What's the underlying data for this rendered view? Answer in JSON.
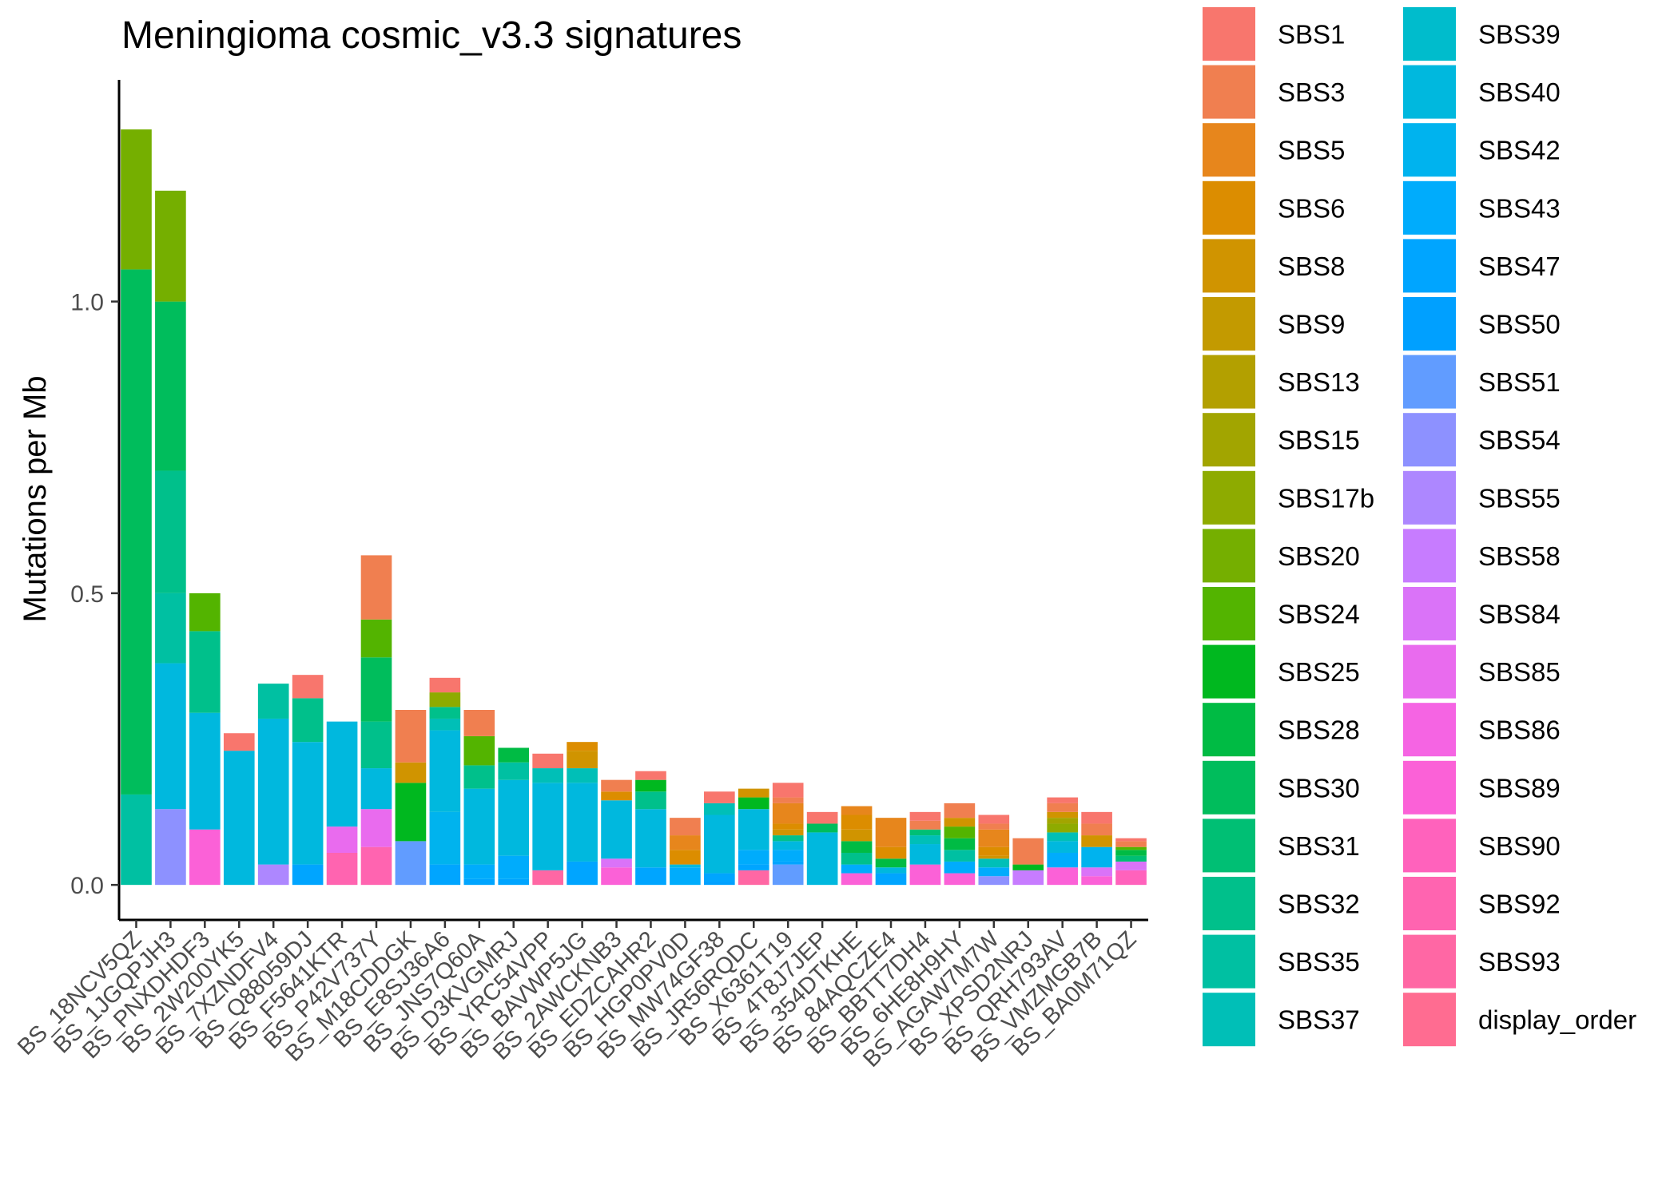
{
  "chart_data": {
    "type": "bar",
    "stacked": true,
    "title": "Meningioma cosmic_v3.3 signatures",
    "xlabel": "",
    "ylabel": "Mutations per Mb",
    "ylim": [
      -0.06,
      1.38
    ],
    "yticks": [
      0.0,
      0.5,
      1.0
    ],
    "ytick_labels": [
      "0.0",
      "0.5",
      "1.0"
    ],
    "grid": false,
    "legend_position": "right",
    "categories": [
      "BS_18NCV5QZ",
      "BS_1JGQPJH3",
      "BS_PNXDHDF3",
      "BS_2W200YK5",
      "BS_7XZNDFV4",
      "BS_Q88059DJ",
      "BS_F5641KTR",
      "BS_P42V737Y",
      "BS_M18CDDGK",
      "BS_E8SJ36A6",
      "BS_JNS7Q60A",
      "BS_D3KVGMRJ",
      "BS_YRC54VPP",
      "BS_BAVWP5JG",
      "BS_2AWCKNB3",
      "BS_EDZCAHR2",
      "BS_HGP0PV0D",
      "BS_MW74GF38",
      "BS_JR56RQDC",
      "BS_X6361T19",
      "BS_4T8J7JEP",
      "BS_354DTKHE",
      "BS_84AQCZE4",
      "BS_BBTT7DH4",
      "BS_6HE8H9HY",
      "BS_AGAW7M7W",
      "BS_XPSD2NRJ",
      "BS_QRH793AV",
      "BS_VMZMGB7B",
      "BS_BA0M71QZ"
    ],
    "series": [
      {
        "name": "SBS1",
        "color": "#F8766D",
        "values": [
          0,
          0,
          0,
          0.03,
          0,
          0.04,
          0,
          0,
          0,
          0.025,
          0,
          0,
          0.025,
          0,
          0,
          0.015,
          0,
          0.02,
          0,
          0.025,
          0.02,
          0,
          0,
          0.015,
          0,
          0.015,
          0,
          0.01,
          0.02,
          0.005
        ]
      },
      {
        "name": "SBS3",
        "color": "#F07F50",
        "values": [
          0,
          0,
          0,
          0,
          0,
          0,
          0,
          0.11,
          0.09,
          0,
          0.045,
          0,
          0,
          0,
          0.02,
          0,
          0.03,
          0,
          0,
          0.01,
          0,
          0,
          0,
          0.015,
          0.025,
          0.01,
          0.045,
          0.015,
          0.02,
          0.01
        ]
      },
      {
        "name": "SBS5",
        "color": "#E7861C",
        "values": [
          0,
          0,
          0,
          0,
          0,
          0,
          0,
          0,
          0,
          0,
          0,
          0,
          0,
          0,
          0,
          0,
          0.025,
          0,
          0,
          0.035,
          0,
          0.015,
          0.05,
          0,
          0,
          0.03,
          0,
          0,
          0,
          0
        ]
      },
      {
        "name": "SBS6",
        "color": "#DC8D00",
        "values": [
          0,
          0,
          0,
          0,
          0,
          0,
          0,
          0,
          0,
          0,
          0,
          0,
          0,
          0.015,
          0.015,
          0,
          0.025,
          0,
          0,
          0.01,
          0,
          0.025,
          0.02,
          0,
          0,
          0.015,
          0,
          0,
          0,
          0
        ]
      },
      {
        "name": "SBS8",
        "color": "#D09400",
        "values": [
          0,
          0,
          0,
          0,
          0,
          0,
          0,
          0,
          0.035,
          0,
          0,
          0,
          0,
          0.03,
          0,
          0,
          0,
          0,
          0.015,
          0.01,
          0,
          0.02,
          0,
          0,
          0.015,
          0.005,
          0,
          0.01,
          0.02,
          0
        ]
      },
      {
        "name": "SBS9",
        "color": "#C39A00",
        "values": [
          0,
          0,
          0,
          0,
          0,
          0,
          0,
          0,
          0,
          0,
          0,
          0,
          0,
          0,
          0,
          0,
          0,
          0,
          0,
          0,
          0,
          0,
          0,
          0,
          0,
          0,
          0,
          0,
          0,
          0
        ]
      },
      {
        "name": "SBS13",
        "color": "#B3A000",
        "values": [
          0,
          0,
          0,
          0,
          0,
          0,
          0,
          0,
          0,
          0,
          0,
          0,
          0,
          0,
          0,
          0,
          0,
          0,
          0,
          0,
          0,
          0,
          0,
          0,
          0,
          0,
          0,
          0,
          0,
          0
        ]
      },
      {
        "name": "SBS15",
        "color": "#A2A500",
        "values": [
          0,
          0,
          0,
          0,
          0,
          0,
          0,
          0,
          0,
          0,
          0,
          0,
          0,
          0,
          0,
          0,
          0,
          0,
          0,
          0,
          0,
          0,
          0,
          0,
          0,
          0,
          0,
          0.01,
          0,
          0
        ]
      },
      {
        "name": "SBS17b",
        "color": "#8EAB00",
        "values": [
          0,
          0,
          0,
          0,
          0,
          0,
          0,
          0,
          0,
          0.025,
          0,
          0,
          0,
          0,
          0,
          0,
          0,
          0,
          0,
          0,
          0,
          0,
          0,
          0,
          0,
          0,
          0,
          0.015,
          0,
          0
        ]
      },
      {
        "name": "SBS20",
        "color": "#75AF00",
        "values": [
          0.24,
          0.19,
          0,
          0,
          0,
          0,
          0,
          0,
          0,
          0,
          0,
          0,
          0,
          0,
          0,
          0,
          0,
          0,
          0,
          0,
          0,
          0,
          0,
          0,
          0,
          0,
          0,
          0,
          0,
          0
        ]
      },
      {
        "name": "SBS24",
        "color": "#53B400",
        "values": [
          0,
          0,
          0.065,
          0,
          0,
          0,
          0,
          0.065,
          0,
          0,
          0.05,
          0,
          0,
          0,
          0,
          0,
          0,
          0,
          0,
          0,
          0,
          0,
          0,
          0,
          0.02,
          0,
          0,
          0,
          0,
          0.005
        ]
      },
      {
        "name": "SBS25",
        "color": "#00B81F",
        "values": [
          0,
          0,
          0,
          0,
          0,
          0,
          0,
          0,
          0.1,
          0,
          0,
          0,
          0,
          0,
          0,
          0.02,
          0,
          0,
          0.02,
          0,
          0,
          0,
          0,
          0,
          0,
          0,
          0.01,
          0,
          0,
          0
        ]
      },
      {
        "name": "SBS28",
        "color": "#00BB44",
        "values": [
          0,
          0,
          0,
          0,
          0,
          0,
          0,
          0,
          0,
          0,
          0,
          0.025,
          0,
          0,
          0,
          0,
          0,
          0,
          0,
          0,
          0,
          0.02,
          0.015,
          0,
          0.02,
          0,
          0,
          0,
          0,
          0.01
        ]
      },
      {
        "name": "SBS30",
        "color": "#00BD5C",
        "values": [
          0.9,
          0.29,
          0,
          0,
          0,
          0,
          0,
          0.11,
          0,
          0,
          0,
          0,
          0,
          0,
          0,
          0,
          0,
          0,
          0,
          0,
          0.015,
          0,
          0,
          0,
          0,
          0,
          0,
          0,
          0,
          0
        ]
      },
      {
        "name": "SBS31",
        "color": "#00BF74",
        "values": [
          0,
          0,
          0,
          0,
          0,
          0,
          0,
          0,
          0,
          0,
          0,
          0,
          0,
          0,
          0,
          0,
          0,
          0,
          0,
          0,
          0,
          0,
          0,
          0.01,
          0,
          0,
          0,
          0,
          0,
          0.01
        ]
      },
      {
        "name": "SBS32",
        "color": "#00C08B",
        "values": [
          0,
          0.21,
          0.14,
          0,
          0,
          0.075,
          0,
          0.08,
          0,
          0.02,
          0.04,
          0,
          0,
          0,
          0,
          0.03,
          0,
          0,
          0,
          0.01,
          0,
          0.02,
          0,
          0,
          0,
          0,
          0,
          0,
          0,
          0
        ]
      },
      {
        "name": "SBS35",
        "color": "#00C0A2",
        "values": [
          0.155,
          0.12,
          0,
          0,
          0.06,
          0,
          0,
          0,
          0,
          0,
          0,
          0.03,
          0,
          0,
          0,
          0,
          0,
          0,
          0,
          0,
          0,
          0,
          0,
          0,
          0.02,
          0,
          0,
          0,
          0,
          0
        ]
      },
      {
        "name": "SBS37",
        "color": "#00BFB7",
        "values": [
          0,
          0,
          0,
          0,
          0,
          0,
          0,
          0,
          0,
          0.02,
          0,
          0,
          0.025,
          0.025,
          0,
          0,
          0,
          0.02,
          0,
          0,
          0,
          0,
          0,
          0.015,
          0,
          0.015,
          0,
          0.015,
          0,
          0
        ]
      },
      {
        "name": "SBS39",
        "color": "#00BCCC",
        "values": [
          0,
          0,
          0,
          0,
          0,
          0,
          0,
          0,
          0,
          0,
          0,
          0,
          0,
          0,
          0,
          0,
          0,
          0,
          0,
          0,
          0,
          0,
          0,
          0,
          0,
          0,
          0,
          0,
          0,
          0
        ]
      },
      {
        "name": "SBS40",
        "color": "#00B8DE",
        "values": [
          0,
          0.25,
          0.2,
          0.23,
          0.25,
          0.21,
          0.18,
          0.07,
          0,
          0.14,
          0.13,
          0.13,
          0.15,
          0.135,
          0.1,
          0.1,
          0.005,
          0.1,
          0.07,
          0.015,
          0.09,
          0,
          0.01,
          0.035,
          0,
          0,
          0,
          0.02,
          0,
          0
        ]
      },
      {
        "name": "SBS42",
        "color": "#00B3EE",
        "values": [
          0,
          0,
          0,
          0,
          0,
          0,
          0,
          0,
          0,
          0.09,
          0,
          0,
          0,
          0,
          0,
          0,
          0,
          0,
          0,
          0,
          0,
          0,
          0,
          0,
          0,
          0,
          0,
          0,
          0.035,
          0
        ]
      },
      {
        "name": "SBS43",
        "color": "#00ACFC",
        "values": [
          0,
          0,
          0,
          0,
          0,
          0,
          0,
          0,
          0,
          0,
          0.025,
          0.04,
          0,
          0,
          0,
          0,
          0.03,
          0,
          0.025,
          0.02,
          0,
          0.015,
          0,
          0,
          0.02,
          0.015,
          0,
          0.025,
          0,
          0
        ]
      },
      {
        "name": "SBS47",
        "color": "#00A5FF",
        "values": [
          0,
          0,
          0,
          0,
          0,
          0.035,
          0,
          0,
          0,
          0.035,
          0.01,
          0.01,
          0,
          0.04,
          0,
          0.03,
          0,
          0.015,
          0.01,
          0.005,
          0,
          0,
          0.02,
          0,
          0,
          0,
          0,
          0,
          0,
          0
        ]
      },
      {
        "name": "SBS50",
        "color": "#00A0FF",
        "values": [
          0,
          0,
          0,
          0,
          0,
          0,
          0,
          0,
          0,
          0,
          0,
          0,
          0,
          0,
          0,
          0,
          0,
          0.005,
          0,
          0,
          0,
          0,
          0,
          0,
          0,
          0,
          0,
          0,
          0,
          0
        ]
      },
      {
        "name": "SBS51",
        "color": "#619CFF",
        "values": [
          0,
          0,
          0,
          0,
          0,
          0,
          0,
          0,
          0.075,
          0,
          0,
          0,
          0,
          0,
          0,
          0,
          0,
          0,
          0,
          0.035,
          0,
          0,
          0,
          0,
          0,
          0,
          0,
          0,
          0,
          0
        ]
      },
      {
        "name": "SBS54",
        "color": "#8D91FF",
        "values": [
          0,
          0.13,
          0,
          0,
          0,
          0,
          0,
          0,
          0,
          0,
          0,
          0,
          0,
          0,
          0,
          0,
          0,
          0,
          0,
          0,
          0,
          0,
          0,
          0,
          0,
          0.015,
          0,
          0,
          0,
          0
        ]
      },
      {
        "name": "SBS55",
        "color": "#AD87FF",
        "values": [
          0,
          0,
          0,
          0,
          0.035,
          0,
          0,
          0,
          0,
          0,
          0,
          0,
          0,
          0,
          0,
          0,
          0,
          0,
          0,
          0,
          0,
          0,
          0,
          0,
          0,
          0,
          0,
          0,
          0,
          0
        ]
      },
      {
        "name": "SBS58",
        "color": "#C77CFF",
        "values": [
          0,
          0,
          0,
          0,
          0,
          0,
          0,
          0,
          0,
          0,
          0,
          0,
          0,
          0,
          0,
          0,
          0,
          0,
          0,
          0,
          0,
          0,
          0,
          0,
          0,
          0,
          0.025,
          0,
          0,
          0
        ]
      },
      {
        "name": "SBS84",
        "color": "#DA73F8",
        "values": [
          0,
          0,
          0,
          0,
          0,
          0,
          0,
          0,
          0,
          0,
          0,
          0,
          0,
          0,
          0.015,
          0,
          0,
          0,
          0,
          0,
          0,
          0,
          0,
          0,
          0,
          0,
          0,
          0,
          0.015,
          0.015
        ]
      },
      {
        "name": "SBS85",
        "color": "#E96BEE",
        "values": [
          0,
          0,
          0,
          0,
          0,
          0,
          0.045,
          0.065,
          0,
          0,
          0,
          0,
          0,
          0,
          0,
          0,
          0,
          0,
          0,
          0,
          0,
          0,
          0,
          0,
          0,
          0,
          0,
          0,
          0,
          0
        ]
      },
      {
        "name": "SBS86",
        "color": "#F564E3",
        "values": [
          0,
          0,
          0,
          0,
          0,
          0,
          0,
          0,
          0,
          0,
          0,
          0,
          0,
          0,
          0,
          0,
          0,
          0,
          0,
          0,
          0,
          0,
          0,
          0,
          0,
          0,
          0,
          0,
          0,
          0
        ]
      },
      {
        "name": "SBS89",
        "color": "#FB61D7",
        "values": [
          0,
          0,
          0.095,
          0,
          0,
          0,
          0,
          0,
          0,
          0,
          0,
          0,
          0,
          0,
          0.03,
          0,
          0,
          0,
          0,
          0,
          0,
          0.02,
          0,
          0.035,
          0.02,
          0,
          0,
          0.03,
          0.015,
          0
        ]
      },
      {
        "name": "SBS90",
        "color": "#FF62BC",
        "values": [
          0,
          0,
          0,
          0,
          0,
          0,
          0,
          0,
          0,
          0,
          0,
          0,
          0,
          0,
          0,
          0,
          0,
          0,
          0,
          0,
          0,
          0,
          0,
          0,
          0,
          0,
          0,
          0,
          0,
          0.025
        ]
      },
      {
        "name": "SBS92",
        "color": "#FF64B0",
        "values": [
          0,
          0,
          0,
          0,
          0,
          0,
          0.055,
          0.065,
          0,
          0,
          0,
          0,
          0,
          0,
          0,
          0,
          0,
          0,
          0,
          0,
          0,
          0,
          0,
          0,
          0,
          0,
          0,
          0,
          0,
          0
        ]
      },
      {
        "name": "SBS93",
        "color": "#FF67A4",
        "values": [
          0,
          0,
          0,
          0,
          0,
          0,
          0,
          0,
          0,
          0,
          0,
          0,
          0.025,
          0,
          0,
          0,
          0,
          0,
          0.025,
          0,
          0,
          0,
          0,
          0,
          0,
          0,
          0,
          0,
          0,
          0
        ]
      },
      {
        "name": "display_order",
        "color": "#FF6C91",
        "values": [
          0,
          0,
          0,
          0,
          0,
          0,
          0,
          0,
          0,
          0,
          0,
          0,
          0,
          0,
          0,
          0,
          0,
          0,
          0,
          0,
          0,
          0,
          0,
          0,
          0,
          0,
          0,
          0,
          0,
          0
        ]
      }
    ]
  }
}
